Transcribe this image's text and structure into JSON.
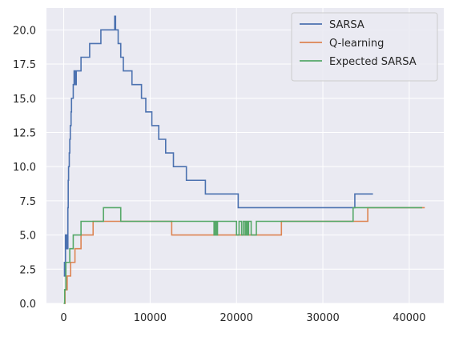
{
  "chart_data": {
    "type": "line",
    "title": "",
    "xlabel": "",
    "ylabel": "",
    "xlim": [
      -2000,
      44000
    ],
    "ylim": [
      0,
      21.6
    ],
    "xticks": [
      0,
      10000,
      20000,
      30000,
      40000
    ],
    "xtick_labels": [
      "0",
      "10000",
      "20000",
      "30000",
      "40000"
    ],
    "yticks": [
      0,
      2.5,
      5,
      7.5,
      10,
      12.5,
      15,
      17.5,
      20
    ],
    "ytick_labels": [
      "0.0",
      "2.5",
      "5.0",
      "7.5",
      "10.0",
      "12.5",
      "15.0",
      "17.5",
      "20.0"
    ],
    "grid": true,
    "legend_position": "top-right",
    "background_color": "#eaeaf2",
    "grid_color": "#ffffff",
    "series": [
      {
        "name": "SARSA",
        "color": "#4c72b0",
        "points": [
          [
            0,
            2
          ],
          [
            80,
            3
          ],
          [
            100,
            2
          ],
          [
            200,
            5
          ],
          [
            280,
            4
          ],
          [
            350,
            5
          ],
          [
            380,
            4
          ],
          [
            480,
            7
          ],
          [
            520,
            9
          ],
          [
            560,
            10
          ],
          [
            640,
            11
          ],
          [
            700,
            12
          ],
          [
            760,
            13
          ],
          [
            850,
            14
          ],
          [
            900,
            15
          ],
          [
            1100,
            16
          ],
          [
            1200,
            17
          ],
          [
            1350,
            16
          ],
          [
            1450,
            17
          ],
          [
            2000,
            18
          ],
          [
            3000,
            19
          ],
          [
            4300,
            20
          ],
          [
            5900,
            21
          ],
          [
            6000,
            20
          ],
          [
            6300,
            19
          ],
          [
            6600,
            18
          ],
          [
            6900,
            17
          ],
          [
            7900,
            16
          ],
          [
            9000,
            15
          ],
          [
            9500,
            14
          ],
          [
            10200,
            13
          ],
          [
            11000,
            12
          ],
          [
            11800,
            11
          ],
          [
            12700,
            10
          ],
          [
            14200,
            9
          ],
          [
            16400,
            8
          ],
          [
            20200,
            7
          ],
          [
            33700,
            8
          ],
          [
            35800,
            8
          ]
        ]
      },
      {
        "name": "Q-learning",
        "color": "#dd8452",
        "points": [
          [
            0,
            0
          ],
          [
            150,
            1
          ],
          [
            400,
            2
          ],
          [
            800,
            3
          ],
          [
            1300,
            4
          ],
          [
            2000,
            5
          ],
          [
            3400,
            6
          ],
          [
            12500,
            5
          ],
          [
            25200,
            6
          ],
          [
            35200,
            7
          ],
          [
            41800,
            7
          ]
        ]
      },
      {
        "name": "Expected SARSA",
        "color": "#55a868",
        "points": [
          [
            0,
            0
          ],
          [
            100,
            1
          ],
          [
            250,
            3
          ],
          [
            700,
            4
          ],
          [
            1100,
            5
          ],
          [
            2000,
            6
          ],
          [
            4600,
            7
          ],
          [
            6600,
            6
          ],
          [
            17400,
            5
          ],
          [
            17550,
            6
          ],
          [
            17700,
            5
          ],
          [
            17800,
            6
          ],
          [
            20000,
            5
          ],
          [
            20300,
            6
          ],
          [
            20600,
            5
          ],
          [
            20800,
            6
          ],
          [
            21000,
            5
          ],
          [
            21150,
            6
          ],
          [
            21250,
            5
          ],
          [
            21400,
            6
          ],
          [
            21700,
            5
          ],
          [
            22300,
            6
          ],
          [
            33500,
            7
          ],
          [
            41500,
            7
          ]
        ]
      }
    ]
  }
}
